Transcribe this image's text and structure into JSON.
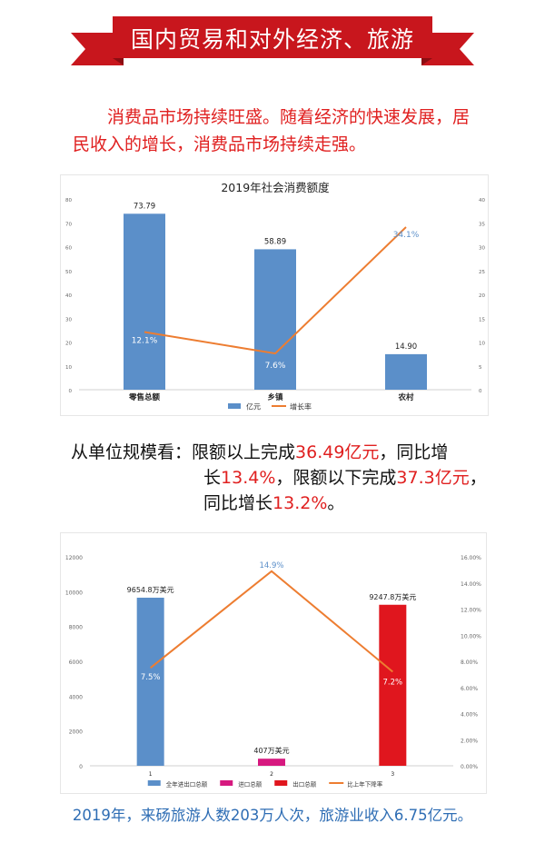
{
  "header": {
    "title": "国内贸易和对外经济、旅游",
    "colors": {
      "band": "#c8161d",
      "dark": "#8b0d12"
    }
  },
  "intro": {
    "indent": "　　",
    "text": "消费品市场持续旺盛。随着经济的快速发展，居民收入的增长，消费品市场持续走强。"
  },
  "unit_scale": {
    "line1": {
      "prefix": "从单位规模看：限额以上完成",
      "value1": "36.49亿元",
      "mid": "，同比增"
    },
    "line2": {
      "prefix": "长",
      "value1": "13.4%",
      "mid": "，限额以下完成",
      "value2": "37.3亿元",
      "suffix": "，"
    },
    "line3": {
      "prefix": "同比增长",
      "value1": "13.2%",
      "suffix": "。"
    }
  },
  "footer": {
    "text": "2019年，来砀旅游人数203万人次，旅游业收入6.75亿元。"
  },
  "chart_data": [
    {
      "type": "bar",
      "title": "2019年社会消费额度",
      "categories": [
        "零售总额",
        "乡镇",
        "农村"
      ],
      "series": [
        {
          "name": "亿元",
          "type": "bar",
          "axis": "left",
          "color": "#5b8fc9",
          "values": [
            73.79,
            58.89,
            14.9
          ],
          "labels": [
            "73.79",
            "58.89",
            "14.90"
          ]
        },
        {
          "name": "增长率",
          "type": "line",
          "axis": "right",
          "color": "#ed7d31",
          "values": [
            12.1,
            7.6,
            34.1
          ],
          "labels": [
            "12.1%",
            "7.6%",
            "34.1%"
          ]
        }
      ],
      "yleft": {
        "range": [
          0,
          80
        ],
        "ticks": [
          "0",
          "10",
          "20",
          "30",
          "40",
          "50",
          "60",
          "70",
          "80"
        ]
      },
      "yright": {
        "range": [
          0,
          40
        ],
        "ticks": [
          "0",
          "5",
          "10",
          "15",
          "20",
          "25",
          "30",
          "35",
          "40"
        ]
      },
      "legend": "bottom"
    },
    {
      "type": "bar",
      "title": "",
      "categories": [
        "1",
        "2",
        "3"
      ],
      "series": [
        {
          "name": "全年进出口总额",
          "type": "bar",
          "axis": "left",
          "color": "#5b8fc9",
          "values": [
            9654.8,
            null,
            null
          ],
          "labels": [
            "9654.8万美元",
            "",
            ""
          ]
        },
        {
          "name": "进口总额",
          "type": "bar",
          "axis": "left",
          "color": "#d6197f",
          "values": [
            null,
            407,
            null
          ],
          "labels": [
            "",
            "407万美元",
            ""
          ]
        },
        {
          "name": "出口总额",
          "type": "bar",
          "axis": "left",
          "color": "#e0161e",
          "values": [
            null,
            null,
            9247.8
          ],
          "labels": [
            "",
            "",
            "9247.8万美元"
          ]
        },
        {
          "name": "比上年下降率",
          "type": "line",
          "axis": "right",
          "color": "#ed7d31",
          "values": [
            7.5,
            14.9,
            7.2
          ],
          "labels": [
            "7.5%",
            "14.9%",
            "7.2%"
          ]
        }
      ],
      "yleft": {
        "range": [
          0,
          12000
        ],
        "ticks": [
          "0",
          "2000",
          "4000",
          "6000",
          "8000",
          "10000",
          "12000"
        ]
      },
      "yright": {
        "range": [
          0,
          16
        ],
        "ticks": [
          "0.00%",
          "2.00%",
          "4.00%",
          "6.00%",
          "8.00%",
          "10.00%",
          "12.00%",
          "14.00%",
          "16.00%"
        ]
      },
      "legend": "bottom"
    }
  ]
}
